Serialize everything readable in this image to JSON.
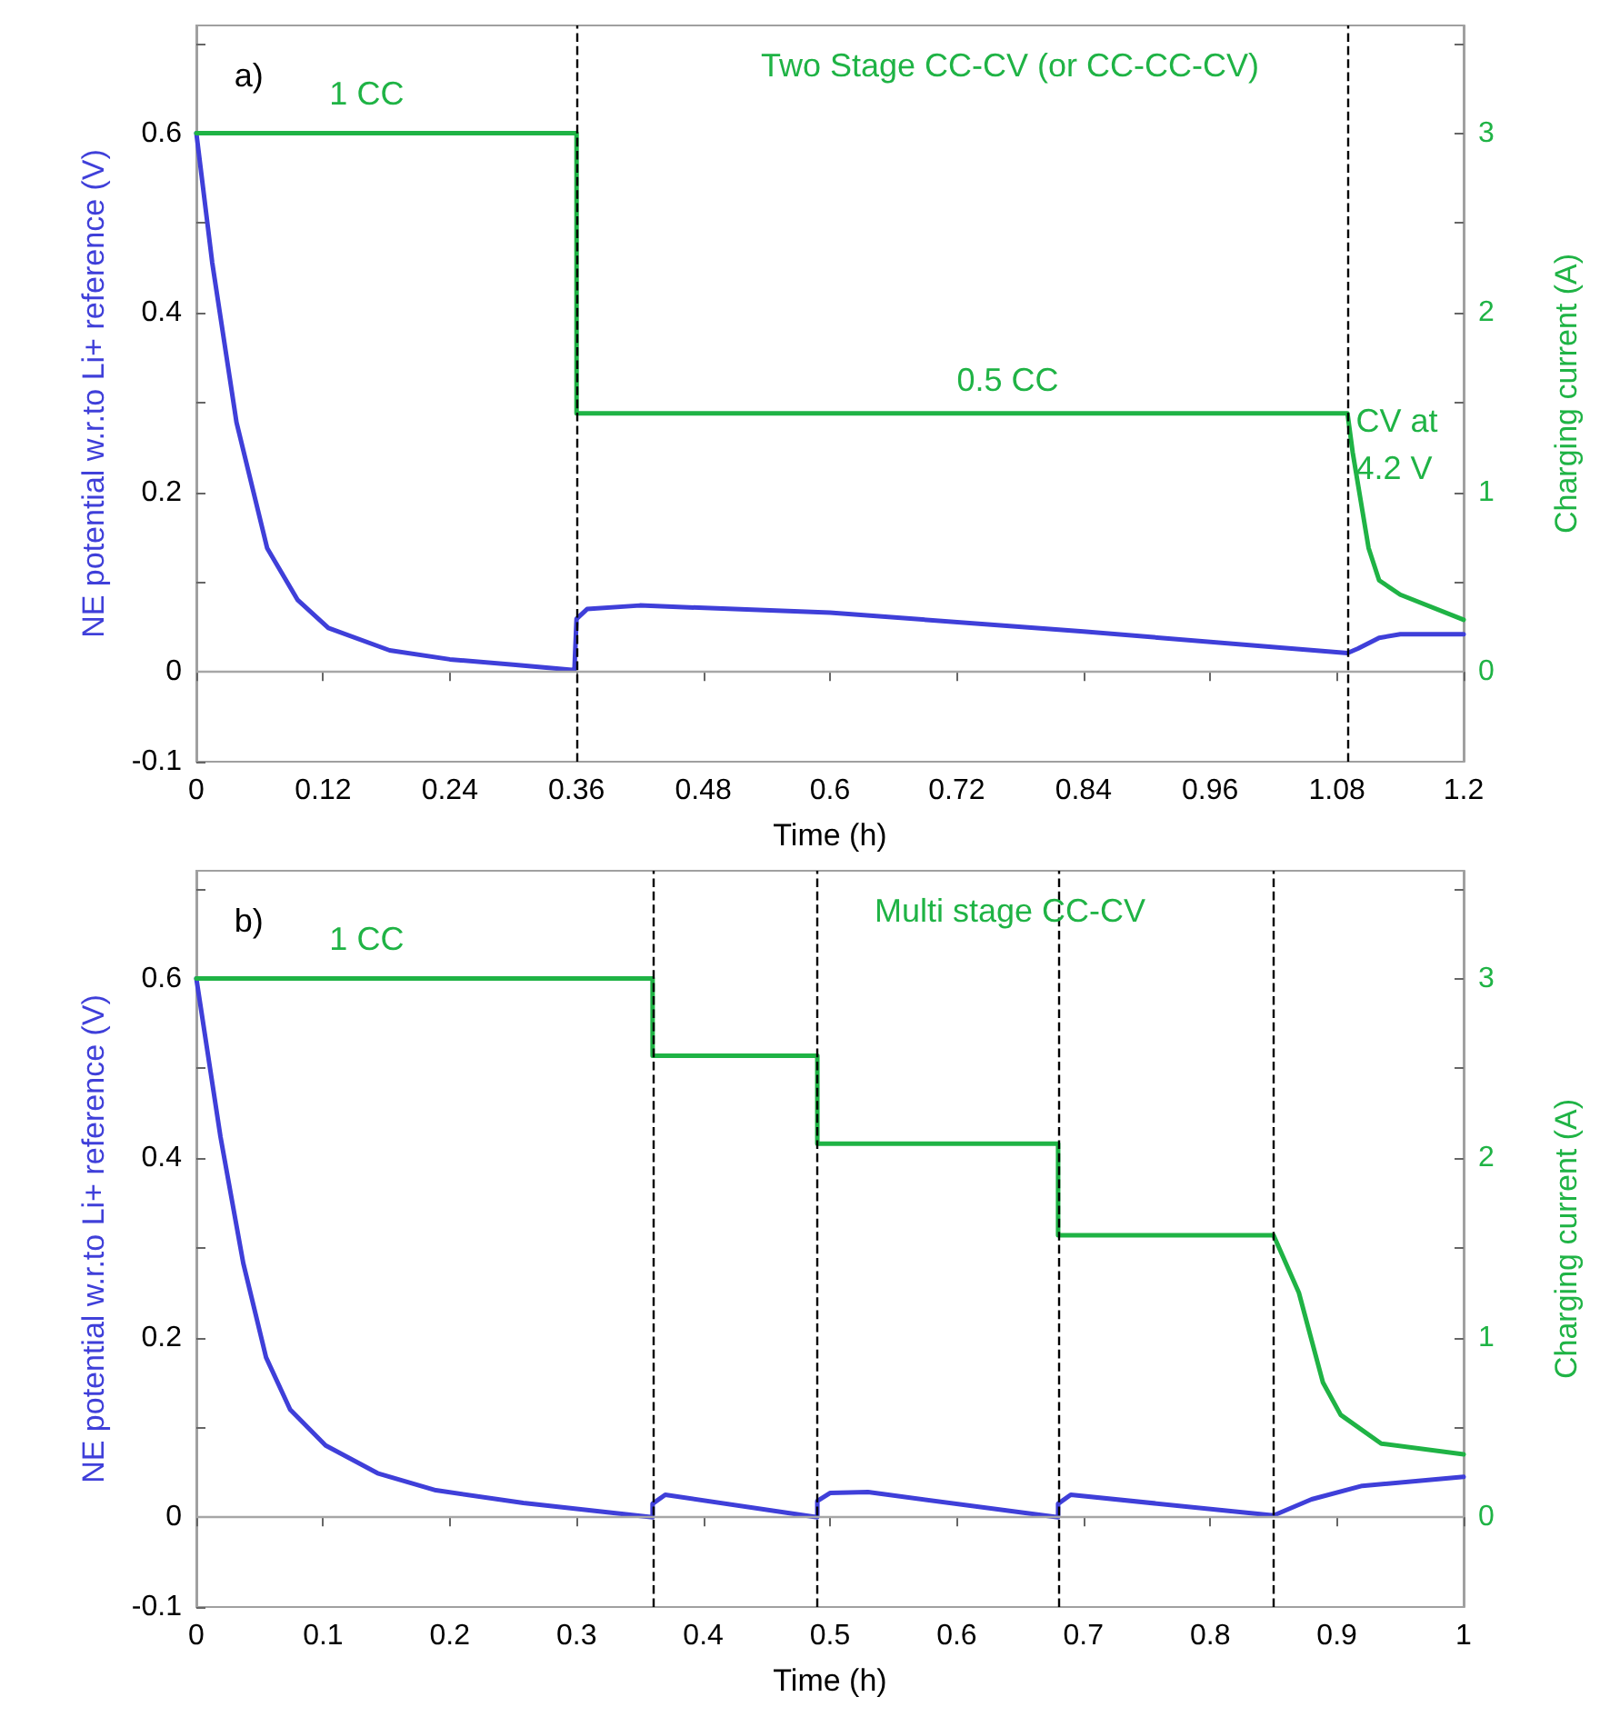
{
  "chart_data": [
    {
      "type": "line",
      "title": "Two Stage CC-CV (or CC-CC-CV)",
      "xlabel": "Time (h)",
      "ylabel": "NE potential w.r.to Li+ reference (V)",
      "y2label": "Charging current (A)",
      "annotations": [
        "a)",
        "1 CC",
        "0.5 CC",
        "CV at\n4.2 V"
      ],
      "xlim": [
        0,
        1.2
      ],
      "xticks": [
        0,
        0.12,
        0.24,
        0.36,
        0.48,
        0.6,
        0.72,
        0.84,
        0.96,
        1.08,
        1.2
      ],
      "ylim": [
        -0.1,
        0.72
      ],
      "yticks": [
        -0.1,
        0,
        {
          "value": 0.1,
          "label": null
        },
        0.2,
        {
          "value": 0.3,
          "label": null
        },
        0.4,
        {
          "value": 0.5,
          "label": null
        },
        0.6,
        {
          "value": 0.7,
          "label": null
        }
      ],
      "y2lim": [
        -0.5,
        3.6
      ],
      "y2ticks": [
        0,
        {
          "value": 0.5,
          "label": null
        },
        1,
        {
          "value": 1.5,
          "label": null
        },
        2,
        {
          "value": 2.5,
          "label": null
        },
        3,
        {
          "value": 3.5,
          "label": null
        }
      ],
      "grid": false,
      "marker": "none",
      "line_style": "solid",
      "ref_lines": [
        {
          "axis": "y",
          "value": 0,
          "label": null,
          "color": "#a6a6a6",
          "line_style": "solid"
        },
        {
          "axis": "x",
          "value": 0.36,
          "label": null,
          "color": "#000000",
          "line_style": "dashed"
        },
        {
          "axis": "x",
          "value": 1.09,
          "label": null,
          "color": "#000000",
          "line_style": "dashed"
        }
      ],
      "series": [
        {
          "color": "#3f3fd9",
          "x": [
            0,
            0.015,
            0.038,
            0.067,
            0.096,
            0.125,
            0.183,
            0.24,
            0.3,
            0.358,
            0.36,
            0.37,
            0.42,
            0.6,
            0.84,
            1.09,
            1.1,
            1.12,
            1.14,
            1.2
          ],
          "values": [
            0.6,
            0.456,
            0.278,
            0.138,
            0.08,
            0.049,
            0.024,
            0.014,
            0.008,
            0.002,
            0.059,
            0.07,
            0.074,
            0.066,
            0.045,
            0.021,
            0.026,
            0.038,
            0.042,
            0.042
          ]
        },
        {
          "color": "#1fb345",
          "axis": "y2",
          "x": [
            0,
            0.36,
            0.36,
            1.09,
            1.095,
            1.11,
            1.12,
            1.14,
            1.2
          ],
          "values": [
            3,
            3,
            1.44,
            1.44,
            1.22,
            0.69,
            0.51,
            0.43,
            0.29
          ]
        }
      ]
    },
    {
      "type": "line",
      "title": "Multi stage CC-CV",
      "xlabel": "Time (h)",
      "ylabel": "NE potential w.r.to Li+ reference (V)",
      "y2label": "Charging current (A)",
      "annotations": [
        "b)",
        "1 CC"
      ],
      "xlim": [
        0,
        1
      ],
      "xticks": [
        0,
        0.1,
        0.2,
        0.3,
        0.4,
        0.5,
        0.6,
        0.7,
        0.8,
        0.9,
        1
      ],
      "ylim": [
        -0.1,
        0.72
      ],
      "yticks": [
        -0.1,
        0,
        {
          "value": 0.1,
          "label": null
        },
        0.2,
        {
          "value": 0.3,
          "label": null
        },
        0.4,
        {
          "value": 0.5,
          "label": null
        },
        0.6,
        {
          "value": 0.7,
          "label": null
        }
      ],
      "y2lim": [
        -0.5,
        3.6
      ],
      "y2ticks": [
        0,
        {
          "value": 0.5,
          "label": null
        },
        1,
        {
          "value": 1.5,
          "label": null
        },
        2,
        {
          "value": 2.5,
          "label": null
        },
        3,
        {
          "value": 3.5,
          "label": null
        }
      ],
      "grid": false,
      "marker": "none",
      "line_style": "solid",
      "ref_lines": [
        {
          "axis": "y",
          "value": 0,
          "label": null,
          "color": "#a6a6a6",
          "line_style": "solid"
        },
        {
          "axis": "x",
          "value": 0.36,
          "label": null,
          "color": "#000000",
          "line_style": "dashed"
        },
        {
          "axis": "x",
          "value": 0.49,
          "label": null,
          "color": "#000000",
          "line_style": "dashed"
        },
        {
          "axis": "x",
          "value": 0.68,
          "label": null,
          "color": "#000000",
          "line_style": "dashed"
        },
        {
          "axis": "x",
          "value": 0.85,
          "label": null,
          "color": "#000000",
          "line_style": "dashed"
        }
      ],
      "series": [
        {
          "color": "#3f3fd9",
          "x": [
            0,
            0.019,
            0.037,
            0.055,
            0.074,
            0.102,
            0.143,
            0.189,
            0.258,
            0.36,
            0.36,
            0.37,
            0.49,
            0.49,
            0.5,
            0.53,
            0.68,
            0.68,
            0.69,
            0.85,
            0.88,
            0.92,
            1.0
          ],
          "values": [
            0.6,
            0.424,
            0.283,
            0.178,
            0.12,
            0.08,
            0.049,
            0.03,
            0.016,
            0,
            0.015,
            0.025,
            0,
            0.018,
            0.027,
            0.028,
            0,
            0.015,
            0.025,
            0.002,
            0.02,
            0.035,
            0.045
          ]
        },
        {
          "color": "#1fb345",
          "axis": "y2",
          "x": [
            0,
            0.36,
            0.36,
            0.49,
            0.49,
            0.68,
            0.68,
            0.85,
            0.87,
            0.889,
            0.903,
            0.935,
            1.0
          ],
          "values": [
            3,
            3,
            2.57,
            2.57,
            2.08,
            2.08,
            1.57,
            1.57,
            1.25,
            0.75,
            0.57,
            0.41,
            0.35
          ]
        }
      ]
    }
  ]
}
